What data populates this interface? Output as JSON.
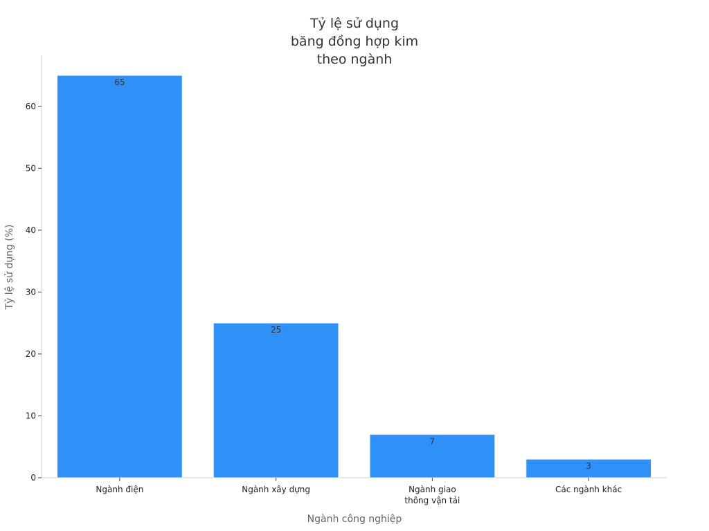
{
  "chart_data": {
    "type": "bar",
    "title": "Tỷ lệ sử dụng\nbăng đồng hợp kim\ntheo ngành",
    "x_label": "Ngành công nghiệp",
    "y_label": "Tỷ lệ sử dụng (%)",
    "categories": [
      "Ngành điện",
      "Ngành xây dựng",
      "Ngành giao\nthông vận tải",
      "Các ngành khác"
    ],
    "values": [
      65,
      25,
      7,
      3
    ],
    "color": "#2f90f8",
    "ylim": [
      0,
      68.25
    ],
    "yticks": [
      0,
      10,
      20,
      30,
      40,
      50,
      60
    ],
    "grid": false
  }
}
